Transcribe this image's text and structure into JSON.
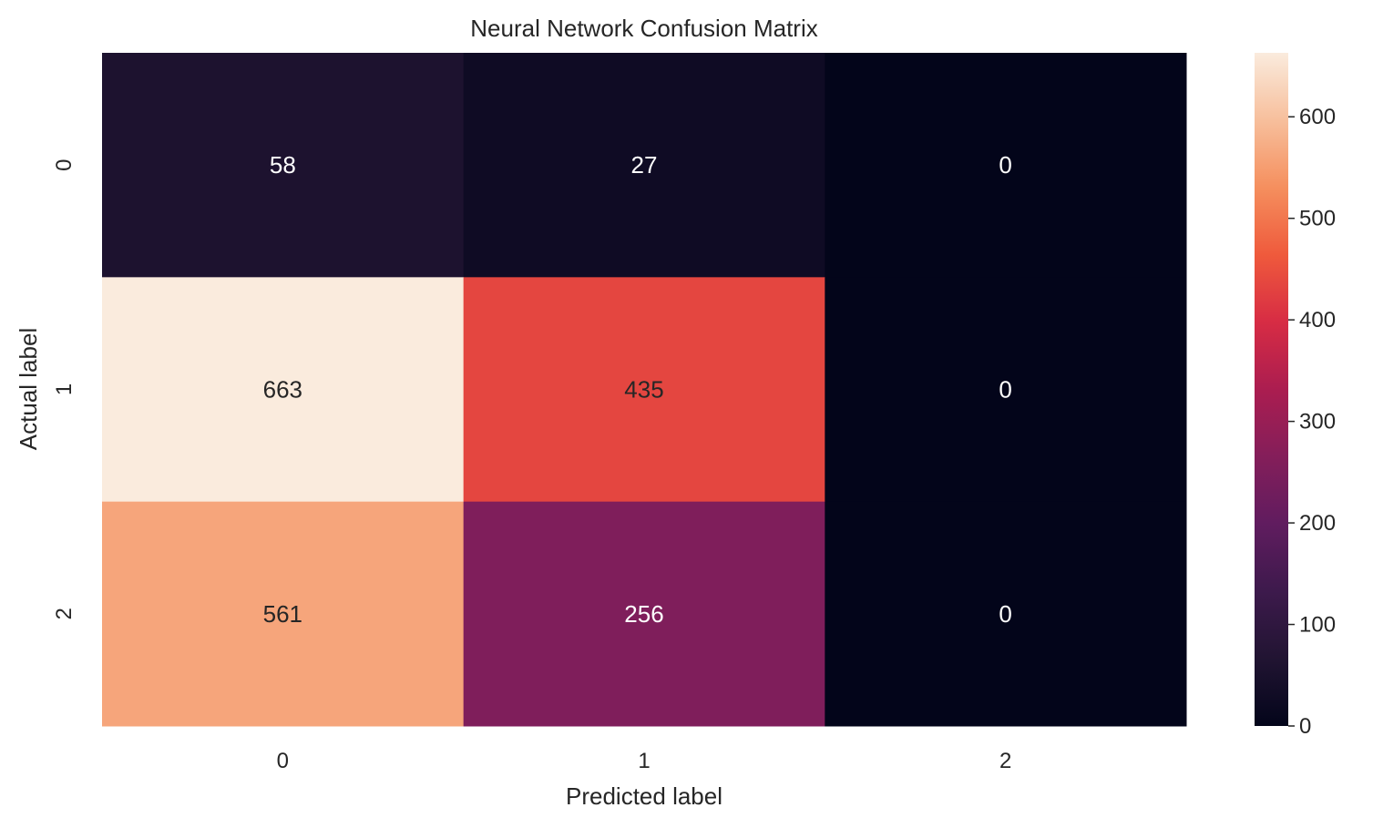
{
  "chart_data": {
    "type": "heatmap",
    "title": "Neural Network Confusion Matrix",
    "xlabel": "Predicted label",
    "ylabel": "Actual label",
    "x_categories": [
      "0",
      "1",
      "2"
    ],
    "y_categories": [
      "0",
      "1",
      "2"
    ],
    "matrix": [
      [
        58,
        27,
        0
      ],
      [
        663,
        435,
        0
      ],
      [
        561,
        256,
        0
      ]
    ],
    "colormap": "rocket",
    "colorbar": {
      "range": [
        0,
        663
      ],
      "ticks": [
        0,
        100,
        200,
        300,
        400,
        500,
        600
      ],
      "tick_labels": [
        "0",
        "100",
        "200",
        "300",
        "400",
        "500",
        "600"
      ]
    },
    "annotation_colors": {
      "light": "#ffffff",
      "dark": "#262626"
    }
  }
}
